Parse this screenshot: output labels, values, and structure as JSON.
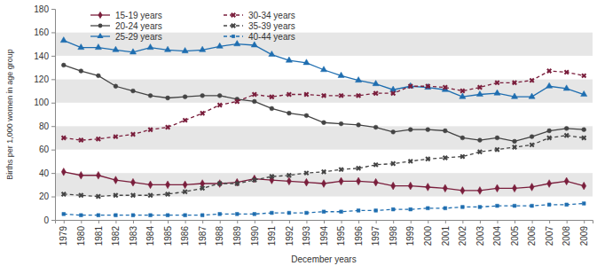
{
  "chart_data": {
    "type": "line",
    "x_label": "December years",
    "y_label": "Births per 1,000 women in age group",
    "x": [
      1979,
      1980,
      1981,
      1982,
      1983,
      1984,
      1985,
      1986,
      1987,
      1988,
      1989,
      1990,
      1991,
      1992,
      1993,
      1994,
      1995,
      1996,
      1997,
      1998,
      1999,
      2000,
      2001,
      2002,
      2003,
      2004,
      2005,
      2006,
      2007,
      2008,
      2009
    ],
    "xlim": [
      1978.5,
      2009.5
    ],
    "xticks": [
      1979,
      1980,
      1981,
      1982,
      1983,
      1984,
      1985,
      1986,
      1987,
      1988,
      1989,
      1990,
      1991,
      1992,
      1993,
      1994,
      1995,
      1996,
      1997,
      1998,
      1999,
      2000,
      2001,
      2002,
      2003,
      2004,
      2005,
      2006,
      2007,
      2008,
      2009
    ],
    "ylim": [
      0,
      180
    ],
    "yticks": [
      0,
      20,
      40,
      60,
      80,
      100,
      120,
      140,
      160,
      180
    ],
    "grid": true,
    "legend": "top-left",
    "series": [
      {
        "name": "15-19 years",
        "color": "#7a1e3c",
        "marker": "diamond",
        "line_style": "solid",
        "values": [
          41,
          38,
          38,
          34,
          32,
          30,
          30,
          30,
          31,
          31,
          32,
          35,
          34,
          33,
          32,
          31,
          33,
          33,
          32,
          29,
          29,
          28,
          27,
          25,
          25,
          27,
          27,
          28,
          31,
          33,
          29
        ]
      },
      {
        "name": "20-24 years",
        "color": "#444444",
        "marker": "circle",
        "line_style": "solid",
        "values": [
          132,
          127,
          123,
          114,
          110,
          106,
          104,
          105,
          106,
          106,
          103,
          101,
          95,
          91,
          89,
          83,
          82,
          81,
          79,
          75,
          77,
          77,
          76,
          70,
          68,
          70,
          67,
          71,
          76,
          78,
          77
        ]
      },
      {
        "name": "25-29 years",
        "color": "#1f6eb0",
        "marker": "triangle",
        "line_style": "solid",
        "values": [
          153,
          147,
          147,
          145,
          143,
          147,
          145,
          144,
          145,
          148,
          150,
          149,
          141,
          136,
          134,
          128,
          123,
          119,
          116,
          111,
          114,
          113,
          111,
          105,
          107,
          108,
          105,
          105,
          114,
          112,
          107
        ]
      },
      {
        "name": "30-34 years",
        "color": "#7a1e3c",
        "marker": "x",
        "line_style": "dashed",
        "values": [
          70,
          68,
          69,
          71,
          73,
          77,
          79,
          85,
          91,
          98,
          101,
          107,
          105,
          107,
          107,
          106,
          106,
          106,
          108,
          108,
          114,
          114,
          113,
          110,
          113,
          117,
          117,
          119,
          127,
          126,
          123
        ]
      },
      {
        "name": "35-39 years",
        "color": "#444444",
        "marker": "x",
        "line_style": "dashed",
        "values": [
          22,
          21,
          20,
          21,
          21,
          21,
          22,
          24,
          27,
          31,
          31,
          34,
          37,
          38,
          40,
          41,
          43,
          44,
          47,
          48,
          50,
          52,
          53,
          54,
          58,
          60,
          62,
          64,
          70,
          72,
          70
        ]
      },
      {
        "name": "40-44 years",
        "color": "#1f6eb0",
        "marker": "square",
        "line_style": "dashed",
        "values": [
          5,
          4,
          4,
          4,
          4,
          4,
          4,
          4,
          4,
          5,
          5,
          5,
          6,
          6,
          6,
          7,
          7,
          8,
          8,
          9,
          9,
          10,
          10,
          11,
          11,
          12,
          12,
          12,
          13,
          13,
          14
        ]
      }
    ]
  }
}
